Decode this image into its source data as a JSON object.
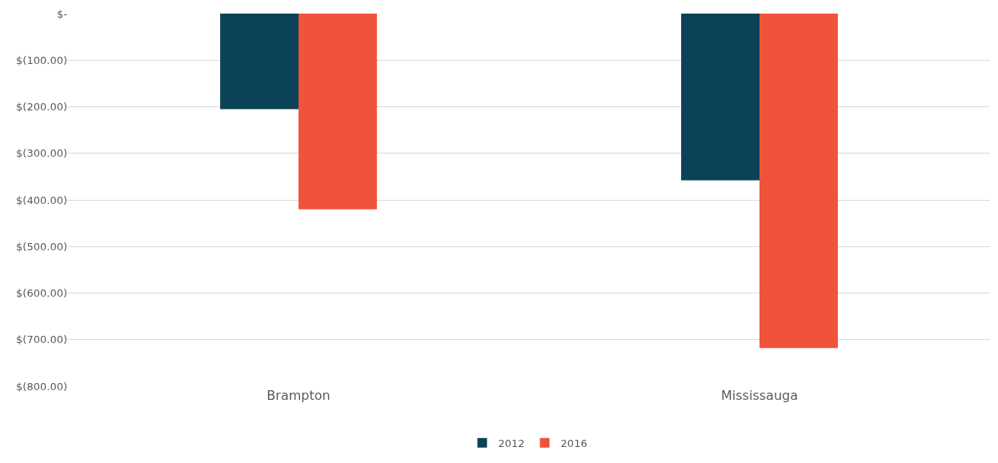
{
  "chart_data": {
    "type": "bar",
    "categories": [
      "Brampton",
      "Mississauga"
    ],
    "series": [
      {
        "name": "2012",
        "color": "#0b4257",
        "values": [
          -205,
          -358
        ]
      },
      {
        "name": "2016",
        "color": "#f0533a",
        "values": [
          -420,
          -718
        ]
      }
    ],
    "ylim": [
      -800,
      0
    ],
    "yticks": [
      {
        "value": 0,
        "label": "$-"
      },
      {
        "value": -100,
        "label": "$(100.00)"
      },
      {
        "value": -200,
        "label": "$(200.00)"
      },
      {
        "value": -300,
        "label": "$(300.00)"
      },
      {
        "value": -400,
        "label": "$(400.00)"
      },
      {
        "value": -500,
        "label": "$(500.00)"
      },
      {
        "value": -600,
        "label": "$(600.00)"
      },
      {
        "value": -700,
        "label": "$(700.00)"
      },
      {
        "value": -800,
        "label": "$(800.00)"
      }
    ],
    "grid": "y",
    "legend": "bottom"
  }
}
